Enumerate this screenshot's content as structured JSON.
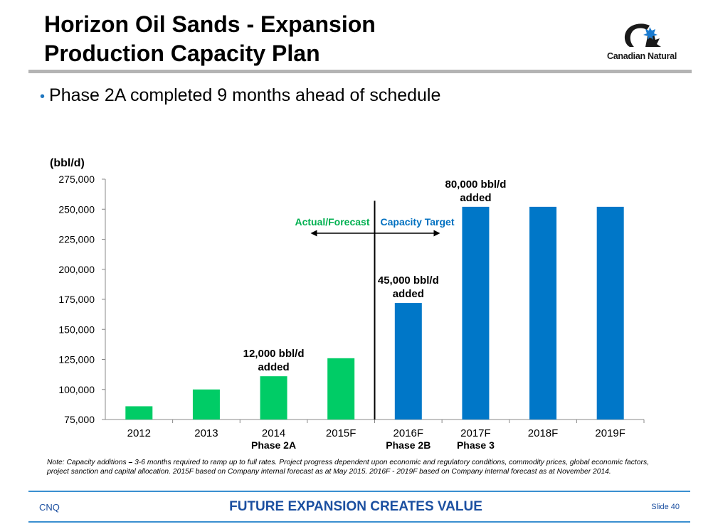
{
  "slide": {
    "title_line1": "Horizon Oil Sands - Expansion",
    "title_line2": "Production Capacity Plan",
    "bullet": "Phase 2A completed 9 months ahead of schedule",
    "logo_text": "Canadian Natural",
    "note_label": "Note: Capacity additions",
    "note_dash": " – ",
    "note_body": "3-6 months required to ramp up to full rates. Project progress dependent upon economic and regulatory conditions, commodity prices, global economic factors, project sanction and capital allocation. 2015F based on Company internal forecast as at May 2015. 2016F - 2019F based on Company internal forecast as at November 2014.",
    "footer_left": "CNQ",
    "footer_center": "FUTURE EXPANSION CREATES VALUE",
    "footer_right": "Slide 40"
  },
  "colors": {
    "actual": "#00cc66",
    "target": "#0077c8",
    "actual_label": "#00b050",
    "target_label": "#0070c0",
    "footer_blue": "#1b4fa0"
  },
  "chart_data": {
    "type": "bar",
    "ylabel": "(bbl/d)",
    "ylim": [
      75000,
      275000
    ],
    "yticks": [
      75000,
      100000,
      125000,
      150000,
      175000,
      200000,
      225000,
      250000,
      275000
    ],
    "ytick_labels": [
      "75,000",
      "100,000",
      "125,000",
      "150,000",
      "175,000",
      "200,000",
      "225,000",
      "250,000",
      "275,000"
    ],
    "categories": [
      "2012",
      "2013",
      "2014",
      "2015F",
      "2016F",
      "2017F",
      "2018F",
      "2019F"
    ],
    "sublabels": [
      "",
      "",
      "Phase 2A",
      "",
      "Phase 2B",
      "Phase 3",
      "",
      ""
    ],
    "values": [
      86000,
      100000,
      111000,
      126000,
      172000,
      252000,
      252000,
      252000
    ],
    "bar_groups": [
      "actual",
      "actual",
      "actual",
      "actual",
      "target",
      "target",
      "target",
      "target"
    ],
    "annotations": [
      {
        "category": "2014",
        "lines": [
          "12,000 bbl/d",
          "added"
        ]
      },
      {
        "category": "2016F",
        "lines": [
          "45,000 bbl/d",
          "added"
        ]
      },
      {
        "category": "2017F",
        "lines": [
          "80,000 bbl/d",
          "added"
        ]
      }
    ],
    "divider_between": [
      "2015F",
      "2016F"
    ],
    "divider_top_value": 257000,
    "arrow_value": 230000,
    "left_region_label": "Actual/Forecast",
    "right_region_label": "Capacity Target",
    "grid": false,
    "legend": "none"
  }
}
